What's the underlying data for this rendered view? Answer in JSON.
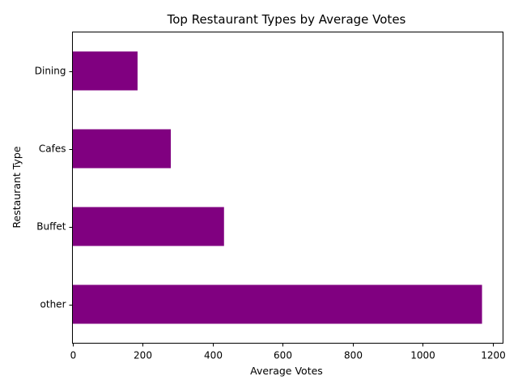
{
  "chart_data": {
    "type": "bar",
    "orientation": "horizontal",
    "title": "Top Restaurant Types by Average Votes",
    "xlabel": "Average Votes",
    "ylabel": "Restaurant Type",
    "categories": [
      "other",
      "Buffet",
      "Cafes",
      "Dining"
    ],
    "values": [
      1170,
      433,
      281,
      186
    ],
    "xlim": [
      0,
      1230
    ],
    "xticks": [
      0,
      200,
      400,
      600,
      800,
      1000,
      1200
    ],
    "bar_color": "#800080",
    "grid": false,
    "legend": "none"
  }
}
